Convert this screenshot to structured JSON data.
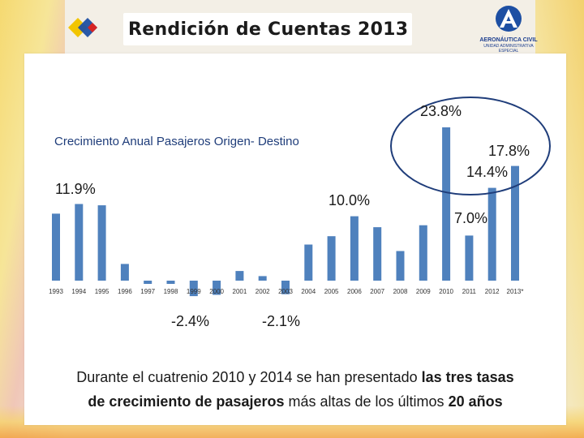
{
  "header": {
    "title": "Rendición de Cuentas 2013",
    "org_name": "AERONÁUTICA CIVIL",
    "org_unit": "UNIDAD ADMINISTRATIVA ESPECIAL"
  },
  "colors": {
    "bar": "#4f81bd",
    "title_blue": "#1f3d7a",
    "circle": "#1f3d7a"
  },
  "chart_data": {
    "type": "bar",
    "title": "Crecimiento Anual Pasajeros Origen- Destino",
    "categories": [
      "1993",
      "1994",
      "1995",
      "1996",
      "1997",
      "1998",
      "1999",
      "2000",
      "2001",
      "2002",
      "2003",
      "2004",
      "2005",
      "2006",
      "2007",
      "2008",
      "2009",
      "2010",
      "2011",
      "2012",
      "2013*"
    ],
    "values": [
      10.4,
      11.9,
      11.7,
      2.6,
      -0.5,
      -0.5,
      -2.4,
      -2.2,
      1.5,
      0.7,
      -2.1,
      5.6,
      6.9,
      10.0,
      8.3,
      4.6,
      8.6,
      23.8,
      7.0,
      14.4,
      17.8
    ],
    "xlabel": "",
    "ylabel": "",
    "ylim": [
      -3,
      25
    ],
    "grid": false,
    "annotations": [
      {
        "text": "11.9%",
        "category": "1994"
      },
      {
        "text": "-2.4%",
        "category": "1999"
      },
      {
        "text": "-2.1%",
        "category": "2003"
      },
      {
        "text": "10.0%",
        "category": "2006"
      },
      {
        "text": "23.8%",
        "category": "2010"
      },
      {
        "text": "7.0%",
        "category": "2011"
      },
      {
        "text": "14.4%",
        "category": "2012"
      },
      {
        "text": "17.8%",
        "category": "2013*"
      }
    ]
  },
  "footer": {
    "part1": "Durante el cuatrenio 2010 y 2014 se han presentado ",
    "bold1": "las tres tasas",
    "part2": " de crecimiento de pasajeros",
    "part3": " más altas de los últimos ",
    "bold2": "20 años"
  }
}
